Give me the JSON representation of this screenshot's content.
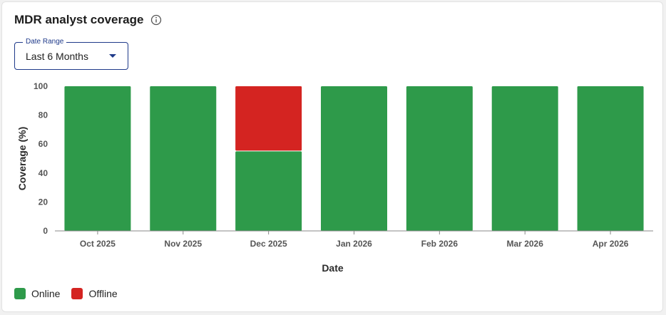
{
  "header": {
    "title": "MDR analyst coverage",
    "info_icon": "info-circle-icon"
  },
  "filter": {
    "legend": "Date Range",
    "value": "Last 6 Months",
    "caret_icon": "caret-down-icon"
  },
  "colors": {
    "online": "#2e9a4a",
    "offline": "#d42421",
    "axis": "#888888",
    "accent": "#1f3a8a"
  },
  "legend": [
    {
      "label": "Online",
      "color": "#2e9a4a"
    },
    {
      "label": "Offline",
      "color": "#d42421"
    }
  ],
  "chart_data": {
    "type": "bar",
    "stacked": true,
    "categories": [
      "Oct 2025",
      "Nov 2025",
      "Dec 2025",
      "Jan 2026",
      "Feb 2026",
      "Mar 2026",
      "Apr 2026"
    ],
    "series": [
      {
        "name": "Online",
        "values": [
          100,
          100,
          55,
          100,
          100,
          100,
          100
        ]
      },
      {
        "name": "Offline",
        "values": [
          0,
          0,
          45,
          0,
          0,
          0,
          0
        ]
      }
    ],
    "xlabel": "Date",
    "ylabel": "Coverage (%)",
    "ylim": [
      0,
      100
    ],
    "yticks": [
      0,
      20,
      40,
      60,
      80,
      100
    ],
    "grid": false,
    "legend_position": "bottom-left"
  }
}
